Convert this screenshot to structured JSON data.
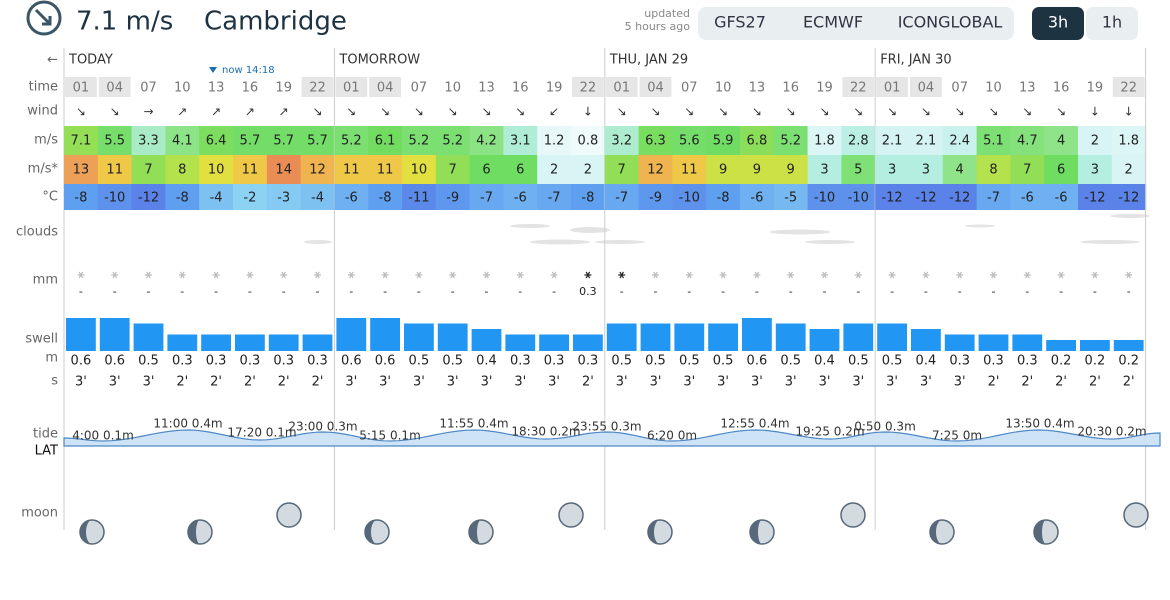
{
  "header": {
    "speed": "7.1 m/s",
    "location": "Cambridge",
    "updated": "updated",
    "updated_ago": "5 hours ago",
    "models": [
      "GFS27",
      "ECMWF",
      "ICONGLOBAL"
    ],
    "intervals": [
      "3h",
      "1h"
    ]
  },
  "row_labels": {
    "back": "←",
    "time": "time",
    "wind": "wind",
    "speed": "m/s",
    "gusts": "m/s*",
    "temp": "°C",
    "clouds": "clouds",
    "precip": "mm",
    "swell": "swell",
    "swell_m": "m",
    "swell_s": "s",
    "tide": "tide",
    "lat": "LAT",
    "moon": "moon"
  },
  "now": "now 14:18",
  "days": [
    {
      "label": "TODAY",
      "times": [
        "01",
        "04",
        "07",
        "10",
        "13",
        "16",
        "19",
        "22"
      ],
      "wind_dir": [
        "↘",
        "↘",
        "→",
        "↗",
        "↗",
        "↗",
        "↗",
        "↘"
      ],
      "wind": [
        7.1,
        5.5,
        3.3,
        4.1,
        6.4,
        5.7,
        5.7,
        5.7
      ],
      "gusts": [
        13,
        11,
        7,
        8,
        10,
        11,
        14,
        12
      ],
      "temp": [
        -8,
        -10,
        -12,
        -8,
        -4,
        -2,
        -3,
        -4
      ],
      "precip": [
        "-",
        "-",
        "-",
        "-",
        "-",
        "-",
        "-",
        "-"
      ],
      "swell_height": [
        0.6,
        0.6,
        0.5,
        0.3,
        0.3,
        0.3,
        0.3,
        0.3
      ],
      "swell_period": [
        "3'",
        "3'",
        "3'",
        "2'",
        "2'",
        "2'",
        "2'",
        "2'"
      ]
    },
    {
      "label": "TOMORROW",
      "times": [
        "01",
        "04",
        "07",
        "10",
        "13",
        "16",
        "19",
        "22"
      ],
      "wind_dir": [
        "↘",
        "↘",
        "↘",
        "↘",
        "↘",
        "↘",
        "↙",
        "↓"
      ],
      "wind": [
        5.2,
        6.1,
        5.2,
        5.2,
        4.2,
        3.1,
        1.2,
        0.8
      ],
      "gusts": [
        11,
        11,
        10,
        7,
        6,
        6,
        2,
        2
      ],
      "temp": [
        -6,
        -8,
        -11,
        -9,
        -7,
        -6,
        -7,
        -8
      ],
      "precip": [
        "-",
        "-",
        "-",
        "-",
        "-",
        "-",
        "-",
        "0.3"
      ],
      "swell_height": [
        0.6,
        0.6,
        0.5,
        0.5,
        0.4,
        0.3,
        0.3,
        0.3
      ],
      "swell_period": [
        "3'",
        "3'",
        "3'",
        "3'",
        "3'",
        "3'",
        "3'",
        "2'"
      ]
    },
    {
      "label": "THU, JAN 29",
      "times": [
        "01",
        "04",
        "07",
        "10",
        "13",
        "16",
        "19",
        "22"
      ],
      "wind_dir": [
        "↘",
        "↘",
        "↘",
        "↘",
        "↘",
        "↘",
        "↘",
        "↘"
      ],
      "wind": [
        3.2,
        6.3,
        5.6,
        5.9,
        6.8,
        5.2,
        1.8,
        2.8
      ],
      "gusts": [
        7,
        12,
        11,
        9,
        9,
        9,
        3,
        5
      ],
      "temp": [
        -7,
        -9,
        -10,
        -8,
        -6,
        -5,
        -10,
        -10
      ],
      "precip": [
        "-",
        "-",
        "-",
        "-",
        "-",
        "-",
        "-",
        "-"
      ],
      "swell_height": [
        0.5,
        0.5,
        0.5,
        0.5,
        0.6,
        0.5,
        0.4,
        0.5
      ],
      "swell_period": [
        "3'",
        "3'",
        "3'",
        "3'",
        "3'",
        "3'",
        "3'",
        "3'"
      ]
    },
    {
      "label": "FRI, JAN 30",
      "times": [
        "01",
        "04",
        "07",
        "10",
        "13",
        "16",
        "19",
        "22"
      ],
      "wind_dir": [
        "↘",
        "↘",
        "↘",
        "↘",
        "↘",
        "↘",
        "↓",
        "↓"
      ],
      "wind": [
        2.1,
        2.1,
        2.4,
        5.1,
        4.7,
        4,
        2,
        1.8
      ],
      "gusts": [
        3,
        3,
        4,
        8,
        7,
        6,
        3,
        2
      ],
      "temp": [
        -12,
        -12,
        -12,
        -7,
        -6,
        -6,
        -12,
        -12
      ],
      "precip": [
        "-",
        "-",
        "-",
        "-",
        "-",
        "-",
        "-",
        "-"
      ],
      "swell_height": [
        0.5,
        0.4,
        0.3,
        0.3,
        0.3,
        0.2,
        0.2,
        0.2
      ],
      "swell_period": [
        "3'",
        "3'",
        "3'",
        "2'",
        "2'",
        "2'",
        "2'",
        "2'"
      ]
    }
  ],
  "tide": {
    "labels": [
      "4:00 0.1m",
      "11:00 0.4m",
      "17:20 0.1m",
      "23:00 0.3m",
      "5:15 0.1m",
      "11:55 0.4m",
      "18:30 0.2m",
      "23:55 0.3m",
      "6:20 0m",
      "12:55 0.4m",
      "19:25 0.2m",
      "0:50 0.3m",
      "7:25 0m",
      "13:50 0.4m",
      "20:30 0.2m"
    ]
  }
}
